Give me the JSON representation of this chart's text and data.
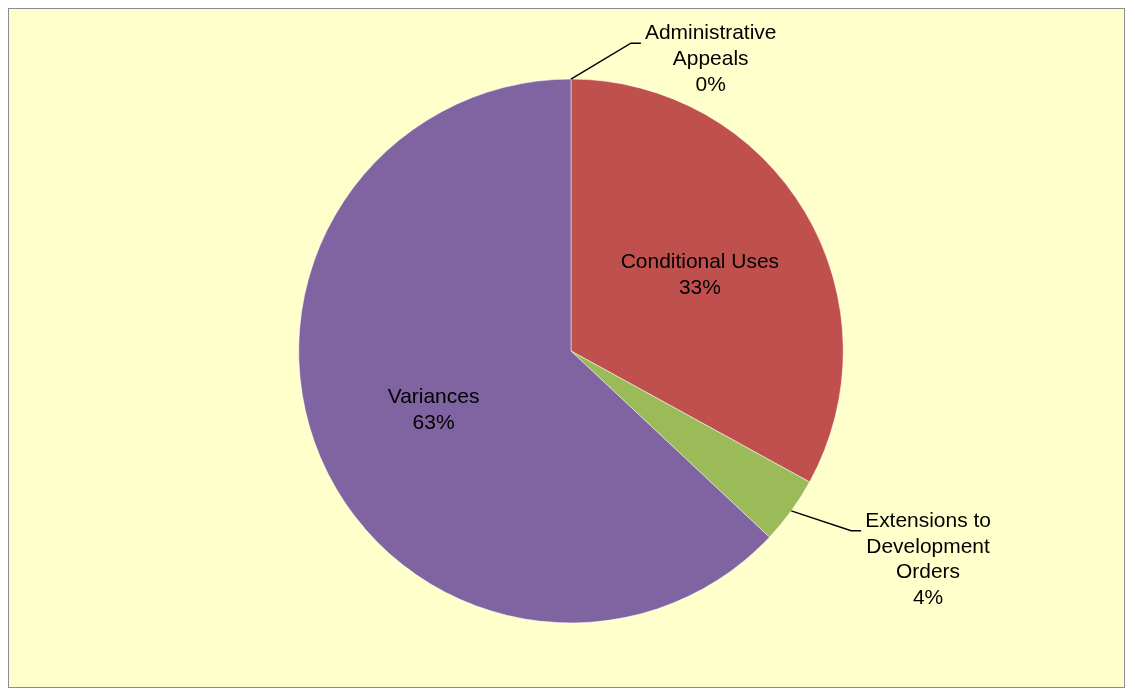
{
  "chart_data": {
    "type": "pie",
    "categories": [
      "Administrative Appeals",
      "Conditional Uses",
      "Extensions to Development Orders",
      "Variances"
    ],
    "values": [
      0,
      33,
      4,
      63
    ],
    "value_labels": [
      "0%",
      "33%",
      "4%",
      "63%"
    ],
    "colors": [
      "#4f81bd",
      "#c0504d",
      "#9bbb59",
      "#8064a2"
    ],
    "legend": false
  }
}
